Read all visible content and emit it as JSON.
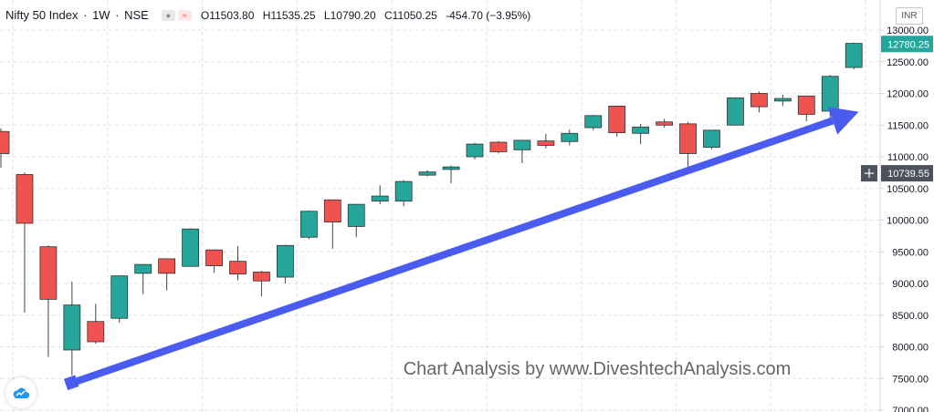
{
  "header": {
    "symbol": "Nifty 50 Index",
    "interval": "1W",
    "exchange": "NSE",
    "ohlc": {
      "o_label": "O",
      "o": "11503.80",
      "h_label": "H",
      "h": "11535.25",
      "l_label": "L",
      "l": "10790.20",
      "c_label": "C",
      "c": "11050.25",
      "change": "-454.70 (−3.95%)"
    },
    "icons": [
      "eye-icon",
      "wave-icon"
    ]
  },
  "currency_label": "INR",
  "watermark": "Chart Analysis by www.DiveshtechAnalysis.com",
  "colors": {
    "up": "#26a69a",
    "down": "#ef5350",
    "arrow": "#4a5cf0",
    "last_price_bg": "#26a69a",
    "crosshair_bg": "#4c525e",
    "grid": "#e0e3eb"
  },
  "chart_data": {
    "type": "candlestick",
    "ylim": [
      7000,
      13300
    ],
    "y_ticks": [
      7000,
      7500,
      8000,
      8500,
      9000,
      9500,
      10000,
      10500,
      11000,
      11500,
      12000,
      12500,
      13000
    ],
    "y_tick_labels": [
      "7000.00",
      "7500.00",
      "8000.00",
      "8500.00",
      "9000.00",
      "9500.00",
      "10000.00",
      "10500.00",
      "11000.00",
      "11500.00",
      "12000.00",
      "12500.00",
      "13000.00"
    ],
    "grid": true,
    "last_price_label": "12780.25",
    "last_price": 12780.25,
    "crosshair_price_label": "10739.55",
    "crosshair_price": 10739.55,
    "candles": [
      {
        "o": 11400,
        "h": 11450,
        "l": 10830,
        "c": 11050
      },
      {
        "o": 10720,
        "h": 10750,
        "l": 8540,
        "c": 9950
      },
      {
        "o": 9580,
        "h": 9600,
        "l": 7840,
        "c": 8750
      },
      {
        "o": 7950,
        "h": 9030,
        "l": 7550,
        "c": 8660
      },
      {
        "o": 8400,
        "h": 8680,
        "l": 8050,
        "c": 8080
      },
      {
        "o": 8450,
        "h": 9130,
        "l": 8380,
        "c": 9120
      },
      {
        "o": 9160,
        "h": 9300,
        "l": 8830,
        "c": 9300
      },
      {
        "o": 9390,
        "h": 9390,
        "l": 8890,
        "c": 9160
      },
      {
        "o": 9270,
        "h": 9870,
        "l": 9270,
        "c": 9860
      },
      {
        "o": 9530,
        "h": 9530,
        "l": 9170,
        "c": 9280
      },
      {
        "o": 9350,
        "h": 9590,
        "l": 9050,
        "c": 9150
      },
      {
        "o": 9180,
        "h": 9200,
        "l": 8800,
        "c": 9040
      },
      {
        "o": 9100,
        "h": 9610,
        "l": 9000,
        "c": 9600
      },
      {
        "o": 9730,
        "h": 10150,
        "l": 9700,
        "c": 10140
      },
      {
        "o": 10320,
        "h": 10320,
        "l": 9550,
        "c": 9970
      },
      {
        "o": 9900,
        "h": 10250,
        "l": 9730,
        "c": 10250
      },
      {
        "o": 10300,
        "h": 10550,
        "l": 10250,
        "c": 10380
      },
      {
        "o": 10300,
        "h": 10630,
        "l": 10220,
        "c": 10610
      },
      {
        "o": 10710,
        "h": 10790,
        "l": 10690,
        "c": 10760
      },
      {
        "o": 10800,
        "h": 10860,
        "l": 10580,
        "c": 10840
      },
      {
        "o": 11000,
        "h": 11220,
        "l": 10960,
        "c": 11200
      },
      {
        "o": 11230,
        "h": 11250,
        "l": 11050,
        "c": 11080
      },
      {
        "o": 11110,
        "h": 11260,
        "l": 10900,
        "c": 11260
      },
      {
        "o": 11250,
        "h": 11360,
        "l": 11130,
        "c": 11180
      },
      {
        "o": 11240,
        "h": 11430,
        "l": 11180,
        "c": 11370
      },
      {
        "o": 11460,
        "h": 11660,
        "l": 11420,
        "c": 11650
      },
      {
        "o": 11800,
        "h": 11800,
        "l": 11320,
        "c": 11380
      },
      {
        "o": 11370,
        "h": 11520,
        "l": 11200,
        "c": 11470
      },
      {
        "o": 11550,
        "h": 11600,
        "l": 11460,
        "c": 11500
      },
      {
        "o": 11520,
        "h": 11550,
        "l": 10790,
        "c": 11050
      },
      {
        "o": 11150,
        "h": 11420,
        "l": 11120,
        "c": 11420
      },
      {
        "o": 11500,
        "h": 11940,
        "l": 11490,
        "c": 11930
      },
      {
        "o": 12000,
        "h": 12030,
        "l": 11700,
        "c": 11790
      },
      {
        "o": 11880,
        "h": 11980,
        "l": 11800,
        "c": 11920
      },
      {
        "o": 11960,
        "h": 11960,
        "l": 11560,
        "c": 11670
      },
      {
        "o": 11720,
        "h": 12290,
        "l": 11560,
        "c": 12270
      },
      {
        "o": 12410,
        "h": 12800,
        "l": 12380,
        "c": 12790
      }
    ],
    "trend_arrow": {
      "from": {
        "candle": 3,
        "price": 7430
      },
      "to": {
        "candle": 36.2,
        "price": 11710
      }
    }
  }
}
